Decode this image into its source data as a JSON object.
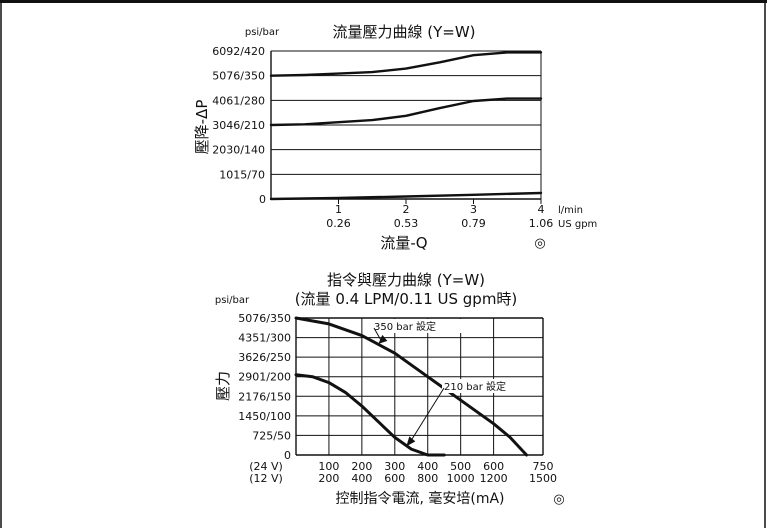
{
  "chart_data": [
    {
      "type": "line",
      "title": "流量壓力曲線 (Y=W)",
      "ylabel": "壓降-ΔP",
      "yunit": "psi/bar",
      "xlabel": "流量-Q",
      "x_units": [
        "l/min",
        "US gpm"
      ],
      "ylim": [
        0,
        420
      ],
      "xlim": [
        0,
        4
      ],
      "yticks": [
        "0",
        "1015/70",
        "2030/140",
        "3046/210",
        "4061/280",
        "5076/350",
        "6092/420"
      ],
      "xticks_primary": [
        "1",
        "2",
        "3",
        "4"
      ],
      "xticks_secondary": [
        "0.26",
        "0.53",
        "0.79",
        "1.06"
      ],
      "grid": true,
      "series": [
        {
          "x": [
            0,
            0.5,
            1.0,
            1.5,
            2.0,
            2.5,
            3.0,
            3.5,
            4.0
          ],
          "y": [
            350,
            352,
            356,
            360,
            370,
            388,
            408,
            416,
            416
          ]
        },
        {
          "x": [
            0,
            0.5,
            1.0,
            1.5,
            2.0,
            2.5,
            3.0,
            3.5,
            4.0
          ],
          "y": [
            210,
            212,
            218,
            224,
            236,
            258,
            278,
            285,
            285
          ]
        },
        {
          "x": [
            0,
            1.0,
            2.0,
            3.0,
            4.0
          ],
          "y": [
            0,
            3,
            7,
            12,
            17
          ]
        }
      ],
      "symbol": "◎"
    },
    {
      "type": "line",
      "title": "指令與壓力曲線 (Y=W)",
      "subtitle": "(流量 0.4 LPM/0.11 US gpm時)",
      "ylabel": "壓力",
      "yunit": "psi/bar",
      "xlabel": "控制指令電流, 毫安培(mA)",
      "ylim": [
        0,
        350
      ],
      "xlim": [
        0,
        750
      ],
      "yticks": [
        "0",
        "725/50",
        "1450/100",
        "2176/150",
        "2901/200",
        "3626/250",
        "4351/300",
        "5076/350"
      ],
      "xticks_24v_label": "(24 V)",
      "xticks_24v": [
        "100",
        "200",
        "300",
        "400",
        "500",
        "600",
        "750"
      ],
      "xticks_12v_label": "(12 V)",
      "xticks_12v": [
        "200",
        "400",
        "600",
        "800",
        "1000",
        "1200",
        "1500"
      ],
      "grid": true,
      "series": [
        {
          "name": "350 bar 設定",
          "x": [
            0,
            100,
            200,
            300,
            400,
            500,
            600,
            650,
            700
          ],
          "y": [
            350,
            335,
            305,
            260,
            200,
            140,
            80,
            45,
            0
          ]
        },
        {
          "name": "210 bar 設定",
          "x": [
            0,
            50,
            100,
            150,
            200,
            250,
            300,
            350,
            400,
            450
          ],
          "y": [
            205,
            200,
            185,
            160,
            125,
            85,
            45,
            15,
            0,
            0
          ]
        }
      ],
      "symbol": "◎"
    }
  ]
}
